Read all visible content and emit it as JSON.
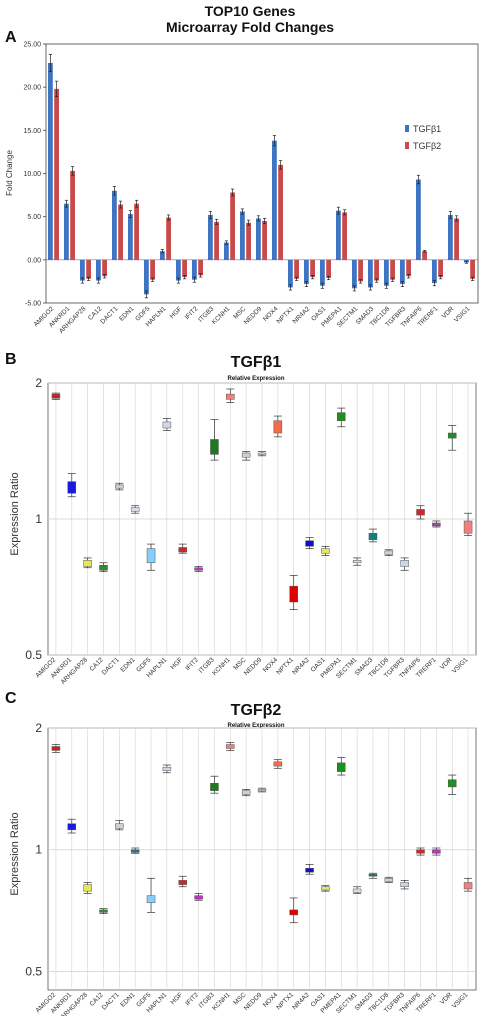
{
  "figure": {
    "panel_a_letter": "A",
    "panel_b_letter": "B",
    "panel_c_letter": "C"
  },
  "chart_data": [
    {
      "type": "bar",
      "title": "TOP10 Genes",
      "subtitle": "Microarray Fold Changes",
      "ylabel": "Fold Change",
      "ylim": [
        -5,
        25
      ],
      "yticks": [
        "25.00",
        "20.00",
        "15.00",
        "10.00",
        "5.00",
        "0.00",
        "-5.00"
      ],
      "legend_position": "right",
      "grid": false,
      "categories": [
        "AMIGO2",
        "ANKRD1",
        "ARHGAP28",
        "CA12",
        "DACT1",
        "EDN1",
        "GDF5",
        "HAPLN1",
        "HGF",
        "IFIT2",
        "ITGB3",
        "KCNH1",
        "MSC",
        "NEDD9",
        "NOX4",
        "NPTX1",
        "NR4A2",
        "OAS1",
        "PMEPA1",
        "SECTM1",
        "SMAD3",
        "TBC1D8",
        "TGFBR3",
        "TNFAIP6",
        "TRERF1",
        "VDR",
        "VSIG1"
      ],
      "series": [
        {
          "name": "TGFβ1",
          "color": "#3e75c2",
          "values": [
            22.8,
            6.5,
            -2.4,
            -2.4,
            8.0,
            5.3,
            -4.0,
            1.0,
            -2.4,
            -2.3,
            5.2,
            2.0,
            5.6,
            4.8,
            13.8,
            -3.2,
            -2.8,
            -3.0,
            5.7,
            -3.3,
            -3.2,
            -3.0,
            -2.8,
            9.3,
            -2.7,
            5.2,
            -0.3
          ],
          "errors": [
            1.0,
            0.4,
            0.3,
            0.3,
            0.5,
            0.4,
            0.4,
            0.2,
            0.3,
            0.3,
            0.4,
            0.2,
            0.3,
            0.3,
            0.6,
            0.3,
            0.3,
            0.3,
            0.4,
            0.3,
            0.3,
            0.3,
            0.3,
            0.5,
            0.3,
            0.4,
            0.1
          ]
        },
        {
          "name": "TGFβ2",
          "color": "#c94a4a",
          "values": [
            19.8,
            10.3,
            -2.2,
            -1.9,
            6.4,
            6.5,
            -2.3,
            4.9,
            -2.0,
            -1.8,
            4.4,
            7.8,
            4.3,
            4.5,
            11.0,
            -2.2,
            -2.0,
            -2.1,
            5.5,
            -2.5,
            -2.4,
            -2.3,
            -1.9,
            1.0,
            -2.0,
            4.8,
            -2.2
          ],
          "errors": [
            0.9,
            0.5,
            0.2,
            0.2,
            0.4,
            0.4,
            0.2,
            0.3,
            0.2,
            0.2,
            0.3,
            0.4,
            0.3,
            0.3,
            0.5,
            0.2,
            0.2,
            0.2,
            0.3,
            0.2,
            0.2,
            0.2,
            0.2,
            0.1,
            0.2,
            0.3,
            0.2
          ]
        }
      ]
    },
    {
      "type": "boxplot",
      "title": "TGFβ1",
      "subtitle": "Relative Expression",
      "ylabel": "Expression Ratio",
      "yscale": "log",
      "ylim": [
        0.5,
        2
      ],
      "yticks": [
        {
          "v": 2,
          "label": "2"
        },
        {
          "v": 1,
          "label": "1"
        },
        {
          "v": 0.5,
          "label": "0.5"
        }
      ],
      "grid": true,
      "categories": [
        "AMIGO2",
        "ANKRD1",
        "ARHGAP28",
        "CA12",
        "DACT1",
        "EDN1",
        "GDF5",
        "HAPLN1",
        "HGF",
        "IFIT2",
        "ITGB3",
        "KCNH1",
        "MSC",
        "NEDD9",
        "NOX4",
        "NPTX1",
        "NR4A2",
        "OAS1",
        "PMEPA1",
        "SECTM1",
        "SMAD3",
        "TBC1D8",
        "TGFBR3",
        "TNFAIP6",
        "TRERF1",
        "VDR",
        "VSIG1"
      ],
      "colors": [
        "#cc1f1f",
        "#1a1adb",
        "#e6e65c",
        "#2e8b2e",
        "#cfcfcf",
        "#d7dde8",
        "#87cefa",
        "#d0d8e8",
        "#cc2a2a",
        "#c22fc2",
        "#1f7a1f",
        "#f08080",
        "#d0d0d0",
        "#e0e0e0",
        "#f26b4a",
        "#e00000",
        "#1010cc",
        "#e6e65c",
        "#1f8f1f",
        "#dcdcdc",
        "#0f7f7f",
        "#d0d0d0",
        "#c8d8e8",
        "#cc2a2a",
        "#b03ab0",
        "#1f8f1f",
        "#f08080"
      ],
      "boxes": [
        {
          "low": 1.84,
          "q1": 1.85,
          "q3": 1.89,
          "high": 1.9
        },
        {
          "low": 1.12,
          "q1": 1.14,
          "q3": 1.21,
          "high": 1.26
        },
        {
          "low": 0.78,
          "q1": 0.785,
          "q3": 0.81,
          "high": 0.82
        },
        {
          "low": 0.765,
          "q1": 0.77,
          "q3": 0.79,
          "high": 0.8
        },
        {
          "low": 1.16,
          "q1": 1.17,
          "q3": 1.19,
          "high": 1.2
        },
        {
          "low": 1.03,
          "q1": 1.04,
          "q3": 1.06,
          "high": 1.07
        },
        {
          "low": 0.77,
          "q1": 0.8,
          "q3": 0.86,
          "high": 0.88
        },
        {
          "low": 1.57,
          "q1": 1.59,
          "q3": 1.64,
          "high": 1.67
        },
        {
          "low": 0.84,
          "q1": 0.845,
          "q3": 0.865,
          "high": 0.88
        },
        {
          "low": 0.765,
          "q1": 0.77,
          "q3": 0.78,
          "high": 0.785
        },
        {
          "low": 1.35,
          "q1": 1.39,
          "q3": 1.5,
          "high": 1.66
        },
        {
          "low": 1.81,
          "q1": 1.84,
          "q3": 1.89,
          "high": 1.94
        },
        {
          "low": 1.35,
          "q1": 1.37,
          "q3": 1.4,
          "high": 1.41
        },
        {
          "low": 1.38,
          "q1": 1.39,
          "q3": 1.4,
          "high": 1.41
        },
        {
          "low": 1.52,
          "q1": 1.55,
          "q3": 1.65,
          "high": 1.69
        },
        {
          "low": 0.63,
          "q1": 0.655,
          "q3": 0.71,
          "high": 0.75
        },
        {
          "low": 0.86,
          "q1": 0.87,
          "q3": 0.895,
          "high": 0.91
        },
        {
          "low": 0.83,
          "q1": 0.84,
          "q3": 0.86,
          "high": 0.87
        },
        {
          "low": 1.6,
          "q1": 1.65,
          "q3": 1.72,
          "high": 1.76
        },
        {
          "low": 0.79,
          "q1": 0.8,
          "q3": 0.81,
          "high": 0.82
        },
        {
          "low": 0.89,
          "q1": 0.9,
          "q3": 0.93,
          "high": 0.95
        },
        {
          "low": 0.83,
          "q1": 0.835,
          "q3": 0.85,
          "high": 0.855
        },
        {
          "low": 0.77,
          "q1": 0.785,
          "q3": 0.81,
          "high": 0.82
        },
        {
          "low": 1.0,
          "q1": 1.02,
          "q3": 1.05,
          "high": 1.07
        },
        {
          "low": 0.96,
          "q1": 0.965,
          "q3": 0.98,
          "high": 0.99
        },
        {
          "low": 1.42,
          "q1": 1.51,
          "q3": 1.55,
          "high": 1.61
        },
        {
          "low": 0.92,
          "q1": 0.93,
          "q3": 0.99,
          "high": 1.03
        }
      ]
    },
    {
      "type": "boxplot",
      "title": "TGFβ2",
      "subtitle": "Relative Expression",
      "ylabel": "Expression Ratio",
      "yscale": "log",
      "ylim": [
        0.45,
        2
      ],
      "yticks": [
        {
          "v": 2,
          "label": "2"
        },
        {
          "v": 1,
          "label": "1"
        },
        {
          "v": 0.5,
          "label": "0.5"
        }
      ],
      "grid": true,
      "categories": [
        "AMIGO2",
        "ANKRD1",
        "ARHGAP28",
        "CA12",
        "DACT1",
        "EDN1",
        "GDF5",
        "HAPLN1",
        "HGF",
        "IFIT2",
        "ITGB3",
        "KCNH1",
        "MSC",
        "NEDD9",
        "NOX4",
        "NPTX1",
        "NR4A2",
        "OAS1",
        "PMEPA1",
        "SECTM1",
        "SMAD3",
        "TBC1D8",
        "TGFBR3",
        "TNFAIP6",
        "TRERF1",
        "VDR",
        "VSIG1"
      ],
      "colors": [
        "#cc1f1f",
        "#1a1adb",
        "#e6e65c",
        "#2e8b2e",
        "#cfcfcf",
        "#2e6b8f",
        "#87cefa",
        "#d0d8e8",
        "#cc2a2a",
        "#c22fc2",
        "#1f7a1f",
        "#f08080",
        "#d0d0d0",
        "#e0e0e0",
        "#f26b4a",
        "#e00000",
        "#1010cc",
        "#e6e65c",
        "#1f8f1f",
        "#dcdcdc",
        "#0f7f7f",
        "#d0d0d0",
        "#c8d8e8",
        "#cc2a2a",
        "#b03ab0",
        "#1f8f1f",
        "#f08080"
      ],
      "boxes": [
        {
          "low": 1.74,
          "q1": 1.76,
          "q3": 1.8,
          "high": 1.82
        },
        {
          "low": 1.1,
          "q1": 1.12,
          "q3": 1.16,
          "high": 1.19
        },
        {
          "low": 0.78,
          "q1": 0.79,
          "q3": 0.82,
          "high": 0.83
        },
        {
          "low": 0.695,
          "q1": 0.7,
          "q3": 0.71,
          "high": 0.715
        },
        {
          "low": 1.12,
          "q1": 1.13,
          "q3": 1.16,
          "high": 1.18
        },
        {
          "low": 0.98,
          "q1": 0.985,
          "q3": 1.0,
          "high": 1.01
        },
        {
          "low": 0.7,
          "q1": 0.74,
          "q3": 0.77,
          "high": 0.85
        },
        {
          "low": 1.55,
          "q1": 1.57,
          "q3": 1.6,
          "high": 1.62
        },
        {
          "low": 0.81,
          "q1": 0.82,
          "q3": 0.84,
          "high": 0.86
        },
        {
          "low": 0.75,
          "q1": 0.755,
          "q3": 0.77,
          "high": 0.78
        },
        {
          "low": 1.38,
          "q1": 1.4,
          "q3": 1.46,
          "high": 1.52
        },
        {
          "low": 1.76,
          "q1": 1.78,
          "q3": 1.82,
          "high": 1.84
        },
        {
          "low": 1.36,
          "q1": 1.37,
          "q3": 1.4,
          "high": 1.41
        },
        {
          "low": 1.39,
          "q1": 1.4,
          "q3": 1.41,
          "high": 1.42
        },
        {
          "low": 1.59,
          "q1": 1.61,
          "q3": 1.65,
          "high": 1.67
        },
        {
          "low": 0.66,
          "q1": 0.69,
          "q3": 0.71,
          "high": 0.76
        },
        {
          "low": 0.87,
          "q1": 0.88,
          "q3": 0.9,
          "high": 0.92
        },
        {
          "low": 0.79,
          "q1": 0.795,
          "q3": 0.81,
          "high": 0.815
        },
        {
          "low": 1.53,
          "q1": 1.56,
          "q3": 1.64,
          "high": 1.69
        },
        {
          "low": 0.78,
          "q1": 0.785,
          "q3": 0.8,
          "high": 0.81
        },
        {
          "low": 0.85,
          "q1": 0.86,
          "q3": 0.87,
          "high": 0.875
        },
        {
          "low": 0.83,
          "q1": 0.835,
          "q3": 0.85,
          "high": 0.855
        },
        {
          "low": 0.8,
          "q1": 0.81,
          "q3": 0.83,
          "high": 0.84
        },
        {
          "low": 0.97,
          "q1": 0.98,
          "q3": 1.0,
          "high": 1.01
        },
        {
          "low": 0.97,
          "q1": 0.98,
          "q3": 1.0,
          "high": 1.01
        },
        {
          "low": 1.37,
          "q1": 1.43,
          "q3": 1.49,
          "high": 1.53
        },
        {
          "low": 0.79,
          "q1": 0.8,
          "q3": 0.83,
          "high": 0.85
        }
      ]
    }
  ]
}
